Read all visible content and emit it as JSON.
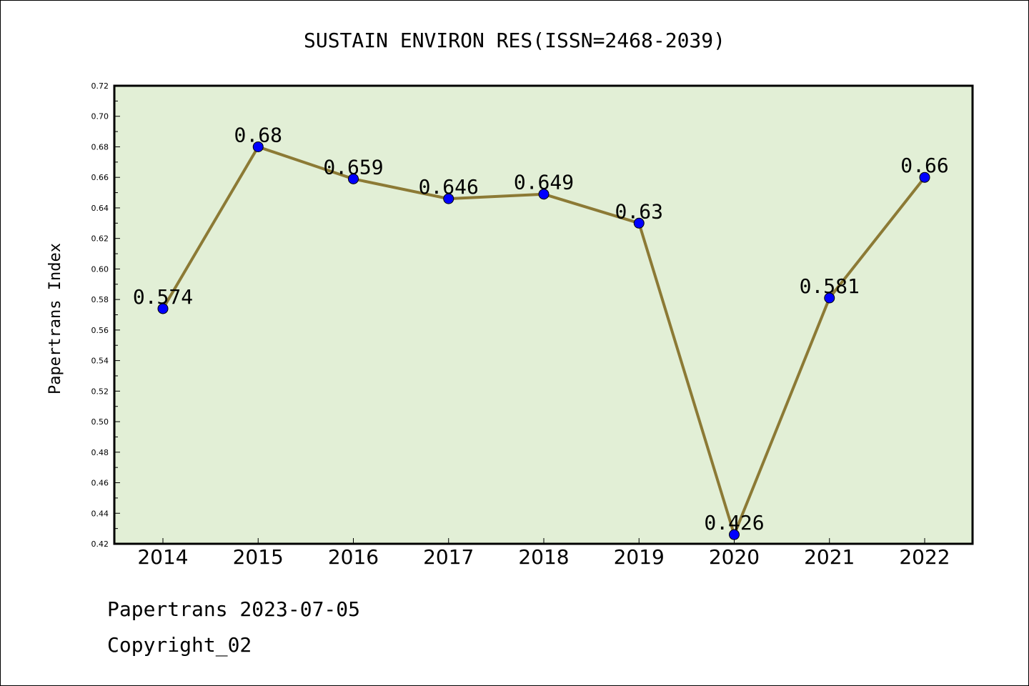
{
  "chart_data": {
    "type": "line",
    "title": "SUSTAIN ENVIRON RES(ISSN=2468-2039)",
    "ylabel": "Papertrans Index",
    "xlabel": "",
    "categories": [
      "2014",
      "2015",
      "2016",
      "2017",
      "2018",
      "2019",
      "2020",
      "2021",
      "2022"
    ],
    "series": [
      {
        "values": [
          0.574,
          0.68,
          0.659,
          0.646,
          0.649,
          0.63,
          0.426,
          0.581,
          0.66
        ],
        "labels": [
          "0.574",
          "0.68",
          "0.659",
          "0.646",
          "0.649",
          "0.63",
          "0.426",
          "0.581",
          "0.66"
        ],
        "line_color": "#8c7a35",
        "marker_color": "#0000ff"
      }
    ],
    "ylim": [
      0.42,
      0.72
    ],
    "yticks": [
      "0.42",
      "0.44",
      "0.46",
      "0.48",
      "0.50",
      "0.52",
      "0.54",
      "0.56",
      "0.58",
      "0.60",
      "0.62",
      "0.64",
      "0.66",
      "0.68",
      "0.70",
      "0.72"
    ],
    "grid": false,
    "plot_background": "#e2efd6"
  },
  "footer": {
    "date": "Papertrans 2023-07-05",
    "copyright": "Copyright_02"
  }
}
